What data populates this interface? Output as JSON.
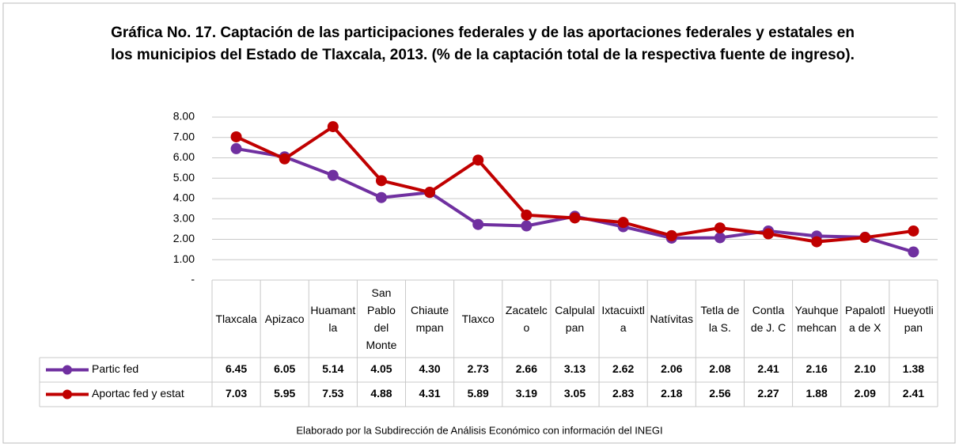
{
  "chart_data": {
    "type": "line",
    "title": "Gráfica No. 17. Captación de las participaciones federales y de las aportaciones federales y estatales en los municipios del Estado de Tlaxcala, 2013. (% de la captación total de la respectiva fuente de ingreso).",
    "categories": [
      "Tlaxcala",
      "Apizaco",
      "Huamantla",
      "San Pablo del Monte",
      "Chiautempan",
      "Tlaxco",
      "Zacatelco",
      "Calpulalpan",
      "Ixtacuixtla",
      "Natívitas",
      "Tetla de la S.",
      "Contla de J. C",
      "Yauhquemehcan",
      "Papalotla de X",
      "Hueyotlipan"
    ],
    "series": [
      {
        "name": "Partic fed",
        "color": "#7030a0",
        "values": [
          6.45,
          6.05,
          5.14,
          4.05,
          4.3,
          2.73,
          2.66,
          3.13,
          2.62,
          2.06,
          2.08,
          2.41,
          2.16,
          2.1,
          1.38
        ],
        "value_labels": [
          "6.45",
          "6.05",
          "5.14",
          "4.05",
          "4.30",
          "2.73",
          "2.66",
          "3.13",
          "2.62",
          "2.06",
          "2.08",
          "2.41",
          "2.16",
          "2.10",
          "1.38"
        ]
      },
      {
        "name": "Aportac fed y estat",
        "color": "#c00000",
        "values": [
          7.03,
          5.95,
          7.53,
          4.88,
          4.31,
          5.89,
          3.19,
          3.05,
          2.83,
          2.18,
          2.56,
          2.27,
          1.88,
          2.09,
          2.41
        ],
        "value_labels": [
          "7.03",
          "5.95",
          "7.53",
          "4.88",
          "4.31",
          "5.89",
          "3.19",
          "3.05",
          "2.83",
          "2.18",
          "2.56",
          "2.27",
          "1.88",
          "2.09",
          "2.41"
        ]
      }
    ],
    "ylim": [
      0,
      8
    ],
    "yticks": [
      {
        "value": 0,
        "label": "-"
      },
      {
        "value": 1,
        "label": "1.00"
      },
      {
        "value": 2,
        "label": "2.00"
      },
      {
        "value": 3,
        "label": "3.00"
      },
      {
        "value": 4,
        "label": "4.00"
      },
      {
        "value": 5,
        "label": "5.00"
      },
      {
        "value": 6,
        "label": "6.00"
      },
      {
        "value": 7,
        "label": "7.00"
      },
      {
        "value": 8,
        "label": "8.00"
      }
    ],
    "grid": true,
    "source": "Elaborado por la Subdirección de Análisis Económico con información del INEGI"
  }
}
